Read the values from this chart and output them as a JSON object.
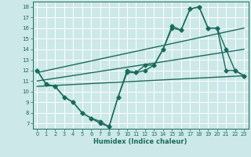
{
  "bg_color": "#cce8e8",
  "line_color": "#1a6b5a",
  "grid_color": "#ffffff",
  "xlabel": "Humidex (Indice chaleur)",
  "ylim": [
    6.5,
    18.5
  ],
  "xlim": [
    -0.5,
    23.5
  ],
  "yticks": [
    7,
    8,
    9,
    10,
    11,
    12,
    13,
    14,
    15,
    16,
    17,
    18
  ],
  "xticks": [
    0,
    1,
    2,
    3,
    4,
    5,
    6,
    7,
    8,
    9,
    10,
    11,
    12,
    13,
    14,
    15,
    16,
    17,
    18,
    19,
    20,
    21,
    22,
    23
  ],
  "line1_x": [
    0,
    1,
    2,
    3,
    4,
    5,
    6,
    7,
    8,
    9,
    10,
    11,
    12,
    13,
    14,
    15,
    16,
    17,
    18,
    19,
    20,
    21,
    22,
    23
  ],
  "line1_y": [
    12.0,
    10.7,
    10.5,
    9.5,
    9.0,
    8.0,
    7.5,
    7.0,
    6.7,
    9.5,
    12.0,
    11.8,
    12.5,
    12.5,
    14.0,
    16.2,
    15.8,
    17.8,
    18.0,
    16.0,
    16.0,
    14.0,
    12.0,
    11.5
  ],
  "line2_x": [
    0,
    1,
    2,
    3,
    4,
    5,
    6,
    7,
    8,
    9,
    10,
    11,
    12,
    13,
    14,
    15,
    16,
    17,
    18,
    19,
    20,
    21,
    22,
    23
  ],
  "line2_y": [
    12.0,
    10.7,
    10.5,
    9.5,
    9.0,
    8.0,
    7.5,
    7.2,
    6.7,
    9.5,
    11.8,
    11.8,
    12.0,
    12.5,
    14.0,
    16.0,
    15.8,
    17.8,
    18.0,
    16.0,
    16.0,
    12.0,
    12.0,
    11.5
  ],
  "line3_x": [
    0,
    23
  ],
  "line3_y": [
    11.8,
    16.0
  ],
  "line4_x": [
    0,
    23
  ],
  "line4_y": [
    11.0,
    14.0
  ],
  "line5_x": [
    0,
    23
  ],
  "line5_y": [
    10.5,
    11.5
  ],
  "marker_size": 2.5,
  "line_width": 1.0
}
